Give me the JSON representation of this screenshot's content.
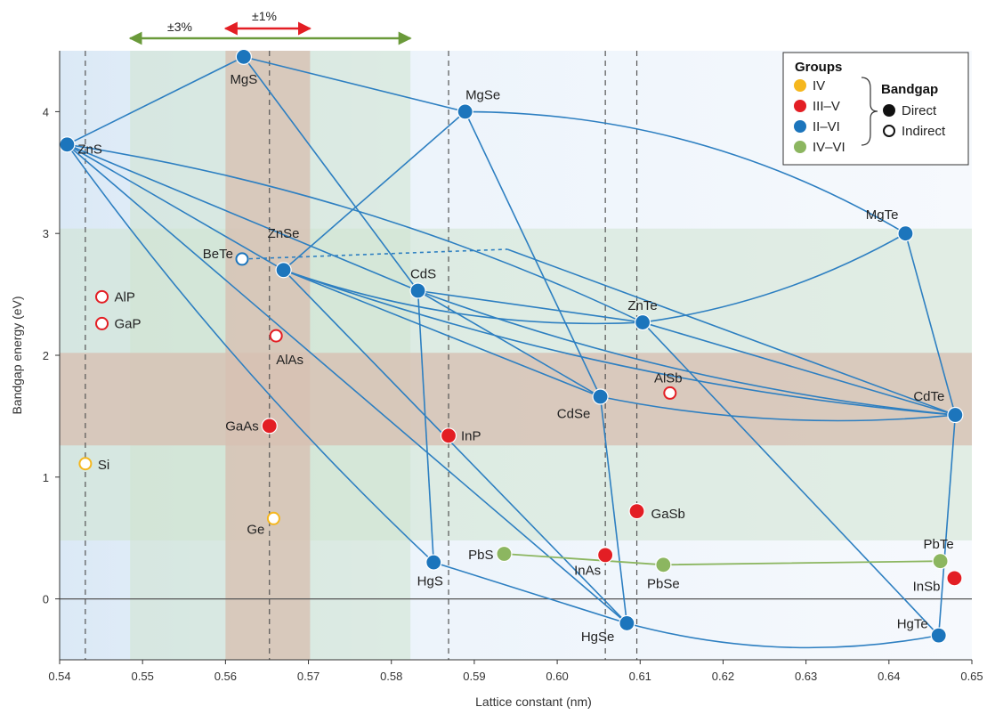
{
  "chart_data": {
    "type": "scatter",
    "xlabel": "Lattice constant (nm)",
    "ylabel": "Bandgap energy (eV)",
    "xlim": [
      0.54,
      0.65
    ],
    "ylim": [
      -0.5,
      4.5
    ],
    "xticks": [
      0.54,
      0.55,
      0.56,
      0.57,
      0.58,
      0.59,
      0.6,
      0.61,
      0.62,
      0.63,
      0.64,
      0.65
    ],
    "xtick_labels": [
      "0.54",
      "0.55",
      "0.56",
      "0.57",
      "0.58",
      "0.59",
      "0.60",
      "0.61",
      "0.62",
      "0.63",
      "0.64",
      "0.65"
    ],
    "yticks": [
      0,
      1,
      2,
      3,
      4
    ],
    "ytick_labels": [
      "0",
      "1",
      "2",
      "3",
      "4"
    ],
    "grid": false,
    "legend_placement": "top-right",
    "range_labels": {
      "pm3": "±3%",
      "pm1": "±1%"
    },
    "bands": {
      "x_pm3": [
        0.5485,
        0.5823
      ],
      "x_pm1": [
        0.56,
        0.5702
      ],
      "y_outer": [
        0.48,
        3.04
      ],
      "y_inner": [
        1.26,
        2.02
      ],
      "arrow_pm3": [
        0.5485,
        0.5823
      ],
      "arrow_pm1": [
        0.56,
        0.5702
      ]
    },
    "dashed_verticals": [
      0.5431,
      0.5653,
      0.5869,
      0.6058,
      0.6096
    ],
    "legend": {
      "groups_title": "Groups",
      "groups": [
        {
          "label": "IV",
          "color": "#f5b71e"
        },
        {
          "label": "III–V",
          "color": "#e31e24"
        },
        {
          "label": "II–VI",
          "color": "#1c75bc"
        },
        {
          "label": "IV–VI",
          "color": "#8cb660"
        }
      ],
      "bandgap_title": "Bandgap",
      "bandgap": [
        {
          "label": "Direct",
          "style": "filled"
        },
        {
          "label": "Indirect",
          "style": "hollow"
        }
      ]
    },
    "colors": {
      "IV": "#f5b71e",
      "III-V": "#e31e24",
      "II-VI": "#1c75bc",
      "IV-VI": "#8cb660",
      "band_outer": "#cfe3cf",
      "band_inner": "#d7c1b3",
      "arrow_pm3": "#6a9a3a",
      "arrow_pm1": "#e31e24",
      "connector": "#2d7fc1"
    },
    "points": [
      {
        "name": "ZnS",
        "x": 0.5409,
        "y": 3.73,
        "group": "II-VI",
        "gap": "direct",
        "lx": 12,
        "ly": 10,
        "anchor": "start"
      },
      {
        "name": "MgS",
        "x": 0.5622,
        "y": 4.45,
        "group": "II-VI",
        "gap": "direct",
        "lx": 0,
        "ly": 30,
        "anchor": "middle"
      },
      {
        "name": "MgSe",
        "x": 0.5889,
        "y": 4.0,
        "group": "II-VI",
        "gap": "direct",
        "lx": 20,
        "ly": -14,
        "anchor": "middle"
      },
      {
        "name": "MgTe",
        "x": 0.642,
        "y": 3.0,
        "group": "II-VI",
        "gap": "direct",
        "lx": -8,
        "ly": -16,
        "anchor": "end"
      },
      {
        "name": "BeTe",
        "x": 0.562,
        "y": 2.79,
        "group": "II-VI",
        "gap": "indirect",
        "lx": -10,
        "ly": -1,
        "anchor": "end"
      },
      {
        "name": "ZnSe",
        "x": 0.567,
        "y": 2.7,
        "group": "II-VI",
        "gap": "direct",
        "lx": 0,
        "ly": -36,
        "anchor": "middle"
      },
      {
        "name": "CdS",
        "x": 0.5832,
        "y": 2.53,
        "group": "II-VI",
        "gap": "direct",
        "lx": 6,
        "ly": -14,
        "anchor": "middle"
      },
      {
        "name": "ZnTe",
        "x": 0.6103,
        "y": 2.27,
        "group": "II-VI",
        "gap": "direct",
        "lx": 0,
        "ly": -14,
        "anchor": "middle"
      },
      {
        "name": "CdSe",
        "x": 0.6052,
        "y": 1.66,
        "group": "II-VI",
        "gap": "direct",
        "lx": -30,
        "ly": 24,
        "anchor": "middle"
      },
      {
        "name": "CdTe",
        "x": 0.648,
        "y": 1.51,
        "group": "II-VI",
        "gap": "direct",
        "lx": -12,
        "ly": -16,
        "anchor": "end"
      },
      {
        "name": "HgS",
        "x": 0.5851,
        "y": 0.3,
        "group": "II-VI",
        "gap": "direct",
        "lx": -4,
        "ly": 26,
        "anchor": "middle"
      },
      {
        "name": "HgSe",
        "x": 0.6084,
        "y": -0.2,
        "group": "II-VI",
        "gap": "direct",
        "lx": -14,
        "ly": 20,
        "anchor": "end"
      },
      {
        "name": "HgTe",
        "x": 0.646,
        "y": -0.3,
        "group": "II-VI",
        "gap": "direct",
        "lx": -12,
        "ly": -8,
        "anchor": "end"
      },
      {
        "name": "AlP",
        "x": 0.5451,
        "y": 2.48,
        "group": "III-V",
        "gap": "indirect",
        "lx": 14,
        "ly": 5,
        "anchor": "start"
      },
      {
        "name": "GaP",
        "x": 0.5451,
        "y": 2.26,
        "group": "III-V",
        "gap": "indirect",
        "lx": 14,
        "ly": 5,
        "anchor": "start"
      },
      {
        "name": "AlAs",
        "x": 0.5661,
        "y": 2.16,
        "group": "III-V",
        "gap": "indirect",
        "lx": 0,
        "ly": 32,
        "anchor": "start"
      },
      {
        "name": "AlSb",
        "x": 0.6136,
        "y": 1.69,
        "group": "III-V",
        "gap": "indirect",
        "lx": -2,
        "ly": -12,
        "anchor": "middle"
      },
      {
        "name": "GaAs",
        "x": 0.5653,
        "y": 1.42,
        "group": "III-V",
        "gap": "direct",
        "lx": -12,
        "ly": 5,
        "anchor": "end"
      },
      {
        "name": "InP",
        "x": 0.5869,
        "y": 1.34,
        "group": "III-V",
        "gap": "direct",
        "lx": 14,
        "ly": 5,
        "anchor": "start"
      },
      {
        "name": "GaSb",
        "x": 0.6096,
        "y": 0.72,
        "group": "III-V",
        "gap": "direct",
        "lx": 16,
        "ly": 8,
        "anchor": "start"
      },
      {
        "name": "InAs",
        "x": 0.6058,
        "y": 0.36,
        "group": "III-V",
        "gap": "direct",
        "lx": -20,
        "ly": 22,
        "anchor": "middle"
      },
      {
        "name": "InSb",
        "x": 0.6479,
        "y": 0.17,
        "group": "III-V",
        "gap": "direct",
        "lx": -16,
        "ly": 14,
        "anchor": "end"
      },
      {
        "name": "Si",
        "x": 0.5431,
        "y": 1.11,
        "group": "IV",
        "gap": "indirect",
        "lx": 14,
        "ly": 6,
        "anchor": "start"
      },
      {
        "name": "Ge",
        "x": 0.5658,
        "y": 0.66,
        "group": "IV",
        "gap": "indirect",
        "lx": -10,
        "ly": 17,
        "anchor": "end"
      },
      {
        "name": "PbS",
        "x": 0.5936,
        "y": 0.37,
        "group": "IV-VI",
        "gap": "direct",
        "lx": -12,
        "ly": 6,
        "anchor": "end"
      },
      {
        "name": "PbSe",
        "x": 0.6128,
        "y": 0.28,
        "group": "IV-VI",
        "gap": "direct",
        "lx": 0,
        "ly": 26,
        "anchor": "middle"
      },
      {
        "name": "PbTe",
        "x": 0.6462,
        "y": 0.31,
        "group": "IV-VI",
        "gap": "direct",
        "lx": -2,
        "ly": -14,
        "anchor": "middle"
      }
    ],
    "connections": [
      {
        "from": "ZnS",
        "to": "MgS",
        "bend": 0
      },
      {
        "from": "MgS",
        "to": "MgSe",
        "bend": 0
      },
      {
        "from": "MgS",
        "to": "CdS",
        "bend": 0
      },
      {
        "from": "MgSe",
        "to": "ZnSe",
        "bend": 0
      },
      {
        "from": "MgSe",
        "to": "CdSe",
        "bend": 0
      },
      {
        "from": "MgSe",
        "to": "MgTe",
        "bend": -70
      },
      {
        "from": "MgTe",
        "to": "ZnTe",
        "bend": -30
      },
      {
        "from": "MgTe",
        "to": "CdTe",
        "bend": 0
      },
      {
        "from": "ZnS",
        "to": "ZnSe",
        "bend": 0
      },
      {
        "from": "ZnS",
        "to": "CdS",
        "bend": 0
      },
      {
        "from": "ZnS",
        "to": "ZnTe",
        "bend": -50
      },
      {
        "from": "ZnS",
        "to": "HgS",
        "bend": 30
      },
      {
        "from": "ZnS",
        "to": "HgSe",
        "bend": 0
      },
      {
        "from": "ZnSe",
        "to": "CdSe",
        "bend": 0
      },
      {
        "from": "ZnSe",
        "to": "ZnTe",
        "bend": 40
      },
      {
        "from": "ZnSe",
        "to": "HgSe",
        "bend": 0
      },
      {
        "from": "ZnSe",
        "to": "CdTe",
        "bend": 50
      },
      {
        "from": "CdS",
        "to": "HgS",
        "bend": 0
      },
      {
        "from": "CdS",
        "to": "CdSe",
        "bend": 0
      },
      {
        "from": "CdS",
        "to": "CdTe",
        "bend": 40
      },
      {
        "from": "CdS",
        "to": "ZnTe",
        "bend": 0
      },
      {
        "from": "ZnTe",
        "to": "CdTe",
        "bend": 0
      },
      {
        "from": "ZnTe",
        "to": "HgTe",
        "bend": 0
      },
      {
        "from": "CdSe",
        "to": "HgSe",
        "bend": 0
      },
      {
        "from": "CdSe",
        "to": "CdTe",
        "bend": 30
      },
      {
        "from": "HgS",
        "to": "HgSe",
        "bend": 0
      },
      {
        "from": "HgSe",
        "to": "HgTe",
        "bend": 40
      },
      {
        "from": "CdTe",
        "to": "HgTe",
        "bend": 0
      }
    ],
    "dotted_connections": [
      {
        "from": "BeTe",
        "to_x": 0.594,
        "to_y": 2.87
      },
      {
        "from_x": 0.594,
        "from_y": 2.87,
        "to": "CdTe"
      }
    ],
    "line_series": [
      {
        "points": [
          "PbS",
          "PbSe",
          "PbTe"
        ],
        "group": "IV-VI"
      }
    ]
  }
}
